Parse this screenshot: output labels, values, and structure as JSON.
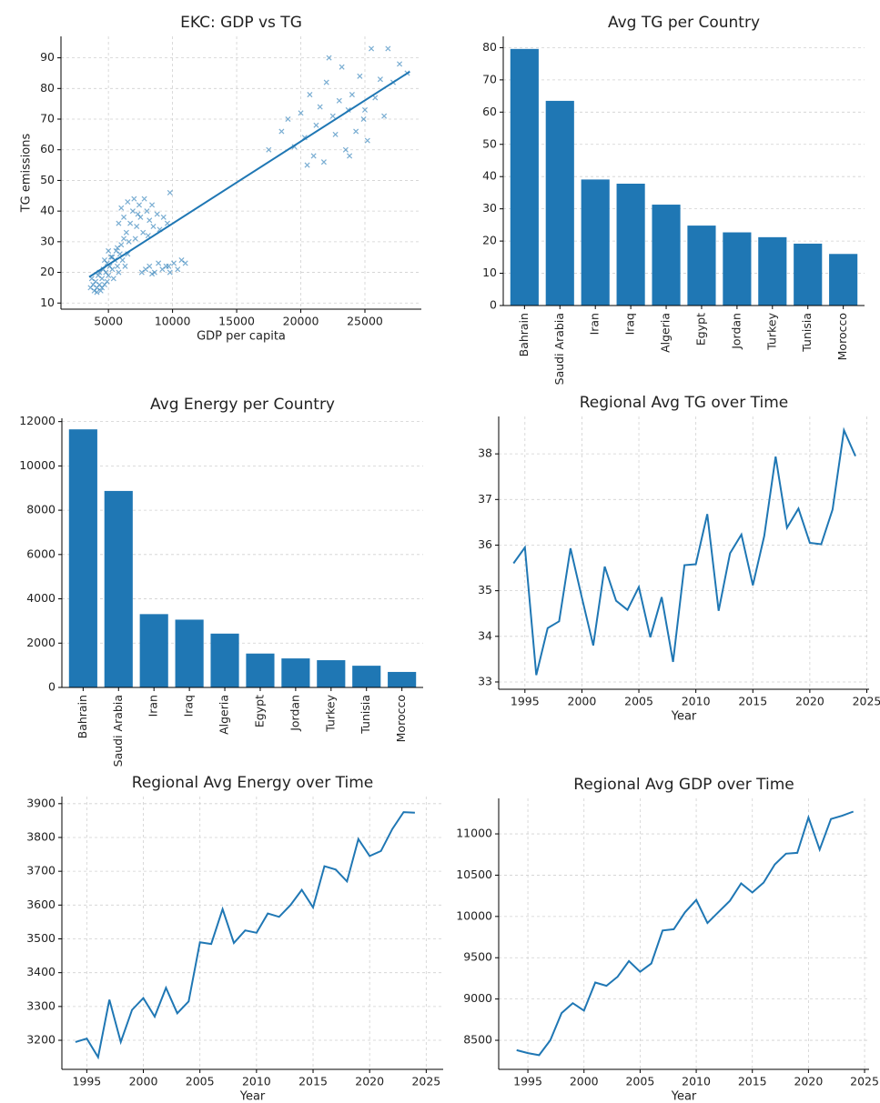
{
  "chart_data": [
    {
      "type": "scatter",
      "title": "EKC: GDP vs TG",
      "x_label": "GDP per capita",
      "y_label": "TG emissions",
      "xlim": [
        1300,
        29400
      ],
      "xticks": [
        5000,
        10000,
        15000,
        20000,
        25000
      ],
      "ylim": [
        8,
        97
      ],
      "yticks": [
        10,
        20,
        30,
        40,
        50,
        60,
        70,
        80,
        90
      ],
      "grid": true,
      "series": [
        {
          "type": "scatter",
          "marker": "x",
          "color": "#1f77b4",
          "alpha": 0.6,
          "x": [
            3600,
            3800,
            3900,
            4000,
            4100,
            4200,
            4300,
            4400,
            4500,
            4600,
            4700,
            4800,
            4900,
            5000,
            5100,
            5200,
            5300,
            5400,
            5500,
            5600,
            5700,
            5800,
            5900,
            6000,
            6100,
            6200,
            3700,
            4300,
            4500,
            4900,
            5300,
            5700,
            6300,
            6500,
            4100,
            4700,
            5000,
            5800,
            6000,
            6200,
            6400,
            6500,
            6700,
            6900,
            7000,
            7200,
            7400,
            7500,
            7700,
            7800,
            8000,
            8200,
            8400,
            8500,
            8800,
            9000,
            9300,
            9600,
            9800,
            6600,
            7100,
            8100,
            7300,
            7600,
            7900,
            8200,
            8600,
            8900,
            9200,
            9500,
            9800,
            10100,
            10400,
            10700,
            11000,
            8400,
            9700,
            17500,
            18500,
            19000,
            19500,
            20000,
            20300,
            20700,
            21000,
            21200,
            21500,
            21800,
            22000,
            22200,
            22500,
            22700,
            23000,
            23200,
            23500,
            23700,
            24000,
            24300,
            24600,
            24900,
            25200,
            25500,
            25800,
            26200,
            26500,
            26800,
            27200,
            27700,
            28300,
            20500,
            23800,
            25000
          ],
          "values": [
            15,
            16,
            14,
            17,
            15,
            19,
            16,
            14,
            18,
            21,
            16,
            20,
            23,
            19,
            22,
            25,
            21,
            18,
            24,
            27,
            22,
            20,
            26,
            29,
            24,
            31,
            18,
            20,
            15,
            17,
            25,
            28,
            22,
            26,
            13.5,
            24,
            27,
            36,
            41,
            38,
            33,
            43,
            36,
            40,
            44,
            35,
            42,
            38,
            33,
            44,
            40,
            37,
            42,
            35,
            39,
            34,
            38,
            36,
            46,
            30,
            31,
            32,
            39,
            20,
            21,
            22,
            20,
            23,
            21,
            22,
            20,
            23,
            21,
            24,
            23,
            19.5,
            22,
            60,
            66,
            70,
            61,
            72,
            64,
            78,
            58,
            68,
            74,
            56,
            82,
            90,
            71,
            65,
            76,
            87,
            60,
            73,
            78,
            66,
            84,
            70,
            63,
            93,
            77,
            83,
            71,
            93,
            82,
            88,
            85,
            55,
            58,
            73
          ]
        },
        {
          "type": "line",
          "color": "#1f77b4",
          "x": [
            3500,
            28500
          ],
          "values": [
            18.5,
            85.5
          ]
        }
      ]
    },
    {
      "type": "bar",
      "title": "Avg TG per Country",
      "color": "#1f77b4",
      "grid": true,
      "categories": [
        "Bahrain",
        "Saudi Arabia",
        "Iran",
        "Iraq",
        "Algeria",
        "Egypt",
        "Jordan",
        "Turkey",
        "Tunisia",
        "Morocco"
      ],
      "values": [
        79.6,
        63.5,
        39.1,
        37.8,
        31.3,
        24.8,
        22.7,
        21.2,
        19.2,
        16.0
      ],
      "ylim": [
        0,
        83.5
      ],
      "yticks": [
        0,
        10,
        20,
        30,
        40,
        50,
        60,
        70,
        80
      ]
    },
    {
      "type": "bar",
      "title": "Avg Energy per Country",
      "color": "#1f77b4",
      "grid": true,
      "categories": [
        "Bahrain",
        "Saudi Arabia",
        "Iran",
        "Iraq",
        "Algeria",
        "Egypt",
        "Jordan",
        "Turkey",
        "Tunisia",
        "Morocco"
      ],
      "values": [
        11650,
        8870,
        3310,
        3060,
        2430,
        1530,
        1310,
        1230,
        980,
        700
      ],
      "ylim": [
        0,
        12150
      ],
      "yticks": [
        0,
        2000,
        4000,
        6000,
        8000,
        10000,
        12000
      ]
    },
    {
      "type": "line",
      "title": "Regional Avg TG over Time",
      "x_label": "Year",
      "color": "#1f77b4",
      "grid": true,
      "x": [
        1994,
        1995,
        1996,
        1997,
        1998,
        1999,
        2000,
        2001,
        2002,
        2003,
        2004,
        2005,
        2006,
        2007,
        2008,
        2009,
        2010,
        2011,
        2012,
        2013,
        2014,
        2015,
        2016,
        2017,
        2018,
        2019,
        2020,
        2021,
        2022,
        2023,
        2024
      ],
      "values": [
        35.6,
        35.95,
        33.15,
        34.18,
        34.33,
        35.93,
        34.85,
        33.8,
        35.53,
        34.78,
        34.58,
        35.08,
        33.98,
        34.86,
        33.44,
        35.56,
        35.58,
        36.68,
        34.56,
        35.82,
        36.23,
        35.12,
        36.2,
        37.94,
        36.38,
        36.8,
        36.05,
        36.02,
        36.78,
        38.52,
        37.95
      ],
      "xlim": [
        1992.7,
        2025.2
      ],
      "xticks": [
        1995,
        2000,
        2005,
        2010,
        2015,
        2020,
        2025
      ],
      "ylim": [
        32.84,
        38.82
      ],
      "yticks": [
        33,
        34,
        35,
        36,
        37,
        38
      ]
    },
    {
      "type": "line",
      "title": "Regional Avg Energy over Time",
      "x_label": "Year",
      "color": "#1f77b4",
      "grid": true,
      "x": [
        1994,
        1995,
        1996,
        1997,
        1998,
        1999,
        2000,
        2001,
        2002,
        2003,
        2004,
        2005,
        2006,
        2007,
        2008,
        2009,
        2010,
        2011,
        2012,
        2013,
        2014,
        2015,
        2016,
        2017,
        2018,
        2019,
        2020,
        2021,
        2022,
        2023,
        2024
      ],
      "values": [
        3195,
        3205,
        3150,
        3320,
        3195,
        3290,
        3325,
        3270,
        3355,
        3280,
        3315,
        3490,
        3485,
        3588,
        3488,
        3525,
        3518,
        3575,
        3565,
        3600,
        3645,
        3593,
        3715,
        3705,
        3670,
        3795,
        3745,
        3760,
        3825,
        3875,
        3873
      ],
      "xlim": [
        1992.8,
        2026.5
      ],
      "xticks": [
        1995,
        2000,
        2005,
        2010,
        2015,
        2020,
        2025
      ],
      "ylim": [
        3114,
        3921
      ],
      "yticks": [
        3200,
        3300,
        3400,
        3500,
        3600,
        3700,
        3800,
        3900
      ]
    },
    {
      "type": "line",
      "title": "Regional Avg GDP over Time",
      "x_label": "Year",
      "color": "#1f77b4",
      "grid": true,
      "x": [
        1994,
        1995,
        1996,
        1997,
        1998,
        1999,
        2000,
        2001,
        2002,
        2003,
        2004,
        2005,
        2006,
        2007,
        2008,
        2009,
        2010,
        2011,
        2012,
        2013,
        2014,
        2015,
        2016,
        2017,
        2018,
        2019,
        2020,
        2021,
        2022,
        2023,
        2024
      ],
      "values": [
        8380,
        8345,
        8320,
        8500,
        8830,
        8950,
        8860,
        9200,
        9160,
        9270,
        9460,
        9330,
        9430,
        9830,
        9845,
        10050,
        10200,
        9920,
        10055,
        10190,
        10400,
        10290,
        10410,
        10630,
        10760,
        10770,
        11200,
        10810,
        11180,
        11220,
        11270
      ],
      "xlim": [
        1992.4,
        2025.4
      ],
      "xticks": [
        1995,
        2000,
        2005,
        2010,
        2015,
        2020,
        2025
      ],
      "ylim": [
        8148,
        11430
      ],
      "yticks": [
        8500,
        9000,
        9500,
        10000,
        10500,
        11000
      ]
    }
  ]
}
